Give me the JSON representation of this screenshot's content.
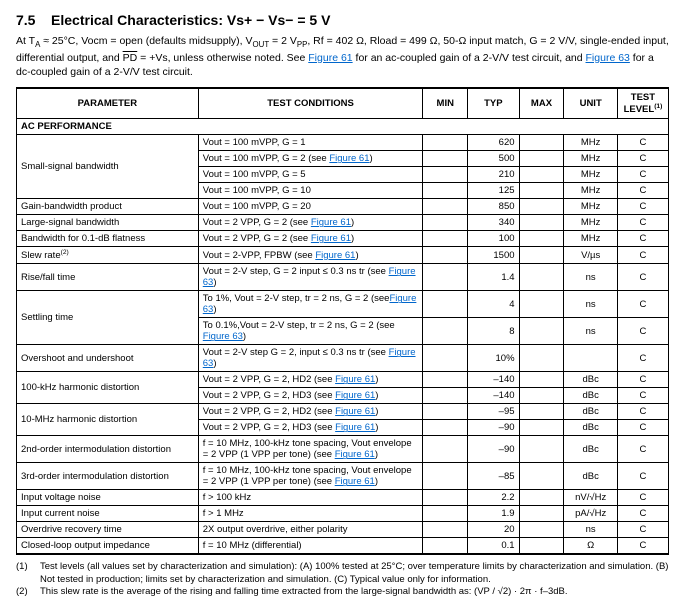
{
  "section": {
    "number": "7.5",
    "title": "Electrical Characteristics: Vs+ − Vs− = 5 V"
  },
  "intro": {
    "part1": "At ",
    "ta": "T",
    "ta_sub": "A",
    "approx": " ≈ 25°C, Vocm = open (defaults midsupply), V",
    "vout_sub": "OUT",
    "part2": " = 2 V",
    "pp": "PP",
    "part3": ", Rf = 402 Ω, Rload = 499 Ω, 50-Ω input match, G = 2 V/V, single-ended input, differential output, and ",
    "pd": "PD",
    "part4": " = +Vs, unless otherwise noted. See ",
    "fig61a": "Figure 61",
    "part5": " for an ac-coupled gain of a 2-V/V test circuit, and ",
    "fig63a": "Figure 63",
    "part6": " for a dc-coupled gain of a 2-V/V test circuit."
  },
  "headers": {
    "parameter": "PARAMETER",
    "conditions": "TEST CONDITIONS",
    "min": "MIN",
    "typ": "TYP",
    "max": "MAX",
    "unit": "UNIT",
    "level": "TEST LEVEL",
    "level_sup": "(1)"
  },
  "section_row": "AC PERFORMANCE",
  "rows": [
    {
      "param": "Small-signal bandwidth",
      "rowspan": 4,
      "cond_plain": "Vout = 100 mVPP, G = 1",
      "typ": "620",
      "unit": "MHz",
      "lvl": "C"
    },
    {
      "cond_plain": "Vout = 100 mVPP, G = 2 (see ",
      "cond_link": "Figure 61",
      "cond_tail": ")",
      "typ": "500",
      "unit": "MHz",
      "lvl": "C"
    },
    {
      "cond_plain": "Vout = 100 mVPP, G = 5",
      "typ": "210",
      "unit": "MHz",
      "lvl": "C"
    },
    {
      "cond_plain": "Vout = 100 mVPP, G = 10",
      "typ": "125",
      "unit": "MHz",
      "lvl": "C"
    },
    {
      "param": "Gain-bandwidth product",
      "cond_plain": "Vout = 100 mVPP, G = 20",
      "typ": "850",
      "unit": "MHz",
      "lvl": "C"
    },
    {
      "param": "Large-signal bandwidth",
      "cond_plain": "Vout = 2 VPP, G = 2 (see ",
      "cond_link": "Figure 61",
      "cond_tail": ")",
      "typ": "340",
      "unit": "MHz",
      "lvl": "C"
    },
    {
      "param": "Bandwidth for 0.1-dB flatness",
      "cond_plain": "Vout = 2 VPP, G = 2 (see ",
      "cond_link": "Figure 61",
      "cond_tail": ")",
      "typ": "100",
      "unit": "MHz",
      "lvl": "C"
    },
    {
      "param": "Slew rate",
      "param_sup": "(2)",
      "cond_plain": "Vout = 2-VPP, FPBW (see ",
      "cond_link": "Figure 61",
      "cond_tail": ")",
      "typ": "1500",
      "unit": "V/µs",
      "lvl": "C"
    },
    {
      "param": "Rise/fall time",
      "cond_plain": "Vout = 2-V step, G = 2 input ≤ 0.3 ns tr (see ",
      "cond_link": "Figure 63",
      "cond_tail": ")",
      "typ": "1.4",
      "unit": "ns",
      "lvl": "C"
    },
    {
      "param": "Settling time",
      "rowspan": 2,
      "cond_plain": "To 1%, Vout = 2-V step, tr = 2 ns, G = 2 (see",
      "cond_link": "Figure 63",
      "cond_tail": ")",
      "typ": "4",
      "unit": "ns",
      "lvl": "C"
    },
    {
      "cond_plain": "To 0.1%,Vout = 2-V step, tr = 2 ns, G = 2 (see ",
      "cond_link": "Figure 63",
      "cond_tail": ")",
      "typ": "8",
      "unit": "ns",
      "lvl": "C"
    },
    {
      "param": "Overshoot and undershoot",
      "cond_plain": "Vout = 2-V step G = 2, input ≤ 0.3 ns tr (see ",
      "cond_link": "Figure 63",
      "cond_tail": ")",
      "typ": "10%",
      "unit": "",
      "lvl": "C"
    },
    {
      "param": "100-kHz harmonic distortion",
      "rowspan": 2,
      "cond_plain": "Vout = 2 VPP, G = 2, HD2 (see ",
      "cond_link": "Figure 61",
      "cond_tail": ")",
      "typ": "–140",
      "unit": "dBc",
      "lvl": "C"
    },
    {
      "cond_plain": "Vout = 2 VPP, G = 2, HD3 (see ",
      "cond_link": "Figure 61",
      "cond_tail": ")",
      "typ": "–140",
      "unit": "dBc",
      "lvl": "C"
    },
    {
      "param": "10-MHz harmonic distortion",
      "rowspan": 2,
      "cond_plain": "Vout = 2 VPP, G = 2, HD2 (see ",
      "cond_link": "Figure 61",
      "cond_tail": ")",
      "typ": "–95",
      "unit": "dBc",
      "lvl": "C"
    },
    {
      "cond_plain": "Vout = 2 VPP, G = 2, HD3 (see ",
      "cond_link": "Figure 61",
      "cond_tail": ")",
      "typ": "–90",
      "unit": "dBc",
      "lvl": "C"
    },
    {
      "param": "2nd-order intermodulation distortion",
      "cond_plain": "f = 10 MHz, 100-kHz tone spacing, Vout envelope = 2 VPP (1 VPP per tone) (see ",
      "cond_link": "Figure 61",
      "cond_tail": ")",
      "typ": "–90",
      "unit": "dBc",
      "lvl": "C"
    },
    {
      "param": "3rd-order intermodulation distortion",
      "cond_plain": "f = 10 MHz, 100-kHz tone spacing, Vout envelope = 2 VPP (1 VPP per tone) (see ",
      "cond_link": "Figure 61",
      "cond_tail": ")",
      "typ": "–85",
      "unit": "dBc",
      "lvl": "C"
    },
    {
      "param": "Input voltage noise",
      "cond_plain": "f > 100 kHz",
      "typ": "2.2",
      "unit": "nV/√Hz",
      "lvl": "C"
    },
    {
      "param": "Input current noise",
      "cond_plain": "f > 1 MHz",
      "typ": "1.9",
      "unit": "pA/√Hz",
      "lvl": "C"
    },
    {
      "param": "Overdrive recovery time",
      "cond_plain": "2X output overdrive, either polarity",
      "typ": "20",
      "unit": "ns",
      "lvl": "C"
    },
    {
      "param": "Closed-loop output impedance",
      "cond_plain": "f = 10 MHz (differential)",
      "typ": "0.1",
      "unit": "Ω",
      "lvl": "C"
    }
  ],
  "footnotes": [
    {
      "idx": "(1)",
      "txt": "Test levels (all values set by characterization and simulation): (A) 100% tested at 25°C; over temperature limits by characterization and simulation. (B) Not tested in production; limits set by characterization and simulation. (C) Typical value only for information."
    },
    {
      "idx": "(2)",
      "txt": "This slew rate is the average of the rising and falling time extracted from the large-signal bandwidth as: (VP / √2) · 2π · f–3dB."
    }
  ]
}
